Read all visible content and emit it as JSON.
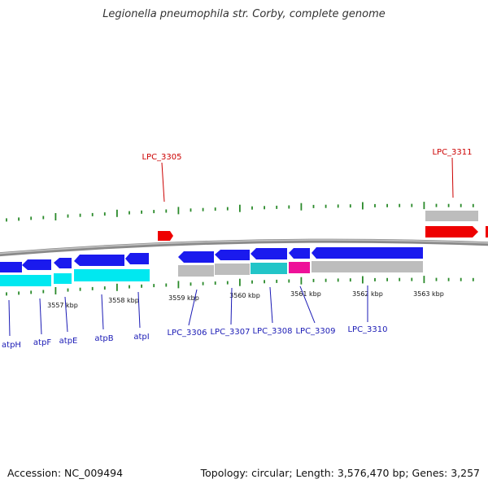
{
  "title": "Legionella pneumophila str. Corby, complete genome",
  "footer": {
    "accession_label": "Accession:",
    "accession": "NC_009494",
    "topology_text": "Topology: circular; Length: 3,576,470 bp; Genes: 3,257"
  },
  "colors": {
    "gene_blue": "#1a1aee",
    "gene_cyan": "#00e8f0",
    "gene_red": "#ee0000",
    "gene_gray": "#bdbdbd",
    "teal": "#22c5c8",
    "magenta": "#ee1199",
    "tick_green": "#2a8a2a",
    "label_blue": "#1a1ab5",
    "label_red": "#cc0000",
    "backbone": "#8a8a8a"
  },
  "scale_labels": [
    "3557 kbp",
    "3558 kbp",
    "3559 kbp",
    "3560 kbp",
    "3561 kbp",
    "3562 kbp",
    "3563 kbp"
  ],
  "top_labels": [
    "LPC_3305",
    "LPC_3311"
  ],
  "bottom_labels": [
    "atpH",
    "atpF",
    "atpE",
    "atpB",
    "atpI",
    "LPC_3306",
    "LPC_3307",
    "LPC_3308",
    "LPC_3309",
    "LPC_3310"
  ]
}
